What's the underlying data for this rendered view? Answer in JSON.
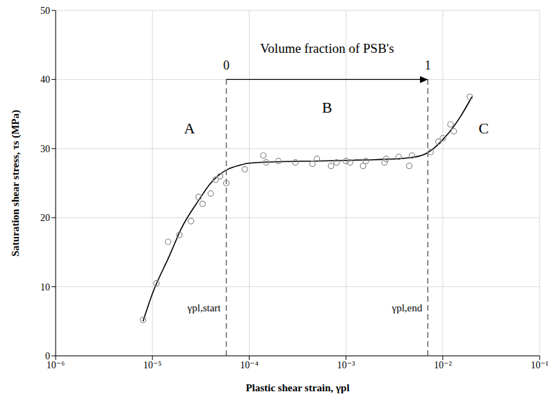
{
  "chart_data": {
    "type": "scatter",
    "x_label": "Plastic shear strain, γpl",
    "y_label": "Saturation shear stress, τs (MPa)",
    "log": "x",
    "grid": true,
    "xlim": [
      1e-06,
      0.1
    ],
    "xticks": [
      {
        "value": 1e-06,
        "label": "10⁻⁶"
      },
      {
        "value": 1e-05,
        "label": "10⁻⁵"
      },
      {
        "value": 0.0001,
        "label": "10⁻⁴"
      },
      {
        "value": 0.001,
        "label": "10⁻³"
      },
      {
        "value": 0.01,
        "label": "10⁻²"
      },
      {
        "value": 0.1,
        "label": "10⁻¹"
      }
    ],
    "ylim": [
      0,
      50
    ],
    "yticks": [
      0,
      10,
      20,
      30,
      40,
      50
    ],
    "series": [
      {
        "type": "scatter",
        "marker": "circle",
        "color": "#8a8a8a",
        "x": [
          8e-06,
          1.1e-05,
          1.45e-05,
          1.9e-05,
          2.5e-05,
          3e-05,
          3.3e-05,
          4e-05,
          4.5e-05,
          5e-05,
          5.8e-05,
          9e-05,
          0.00014,
          0.00015,
          0.0002,
          0.0003,
          0.00045,
          0.0005,
          0.0007,
          0.0008,
          0.001,
          0.0011,
          0.0015,
          0.0016,
          0.0025,
          0.0026,
          0.0035,
          0.0045,
          0.0048,
          0.0075,
          0.009,
          0.01,
          0.012,
          0.013,
          0.019
        ],
        "values": [
          5.2,
          10.5,
          16.5,
          17.5,
          19.5,
          23,
          22,
          23.5,
          25.5,
          26,
          25,
          27,
          29,
          28,
          28.2,
          28,
          27.8,
          28.5,
          27.5,
          28,
          28.2,
          28,
          27.5,
          28.2,
          28,
          28.5,
          28.8,
          27.5,
          29,
          29.5,
          31,
          31.5,
          33.5,
          32.5,
          37.5
        ]
      },
      {
        "type": "line",
        "line_style": "solid",
        "color": "#000000",
        "x": [
          8e-06,
          1e-05,
          1.5e-05,
          2e-05,
          3e-05,
          4e-05,
          5e-05,
          6e-05,
          8e-05,
          0.0001,
          0.0002,
          0.0005,
          0.001,
          0.002,
          0.004,
          0.006,
          0.008,
          0.01,
          0.015,
          0.02
        ],
        "values": [
          5,
          9,
          14.5,
          18.5,
          22.5,
          25,
          26.3,
          27,
          27.6,
          27.9,
          28.1,
          28.2,
          28.3,
          28.4,
          28.6,
          29,
          30,
          31.3,
          34.5,
          37.5
        ]
      }
    ],
    "vlines": [
      {
        "x": 5.8e-05,
        "label": "γpl,start"
      },
      {
        "x": 0.007,
        "label": "γpl,end"
      }
    ],
    "volume_fraction": {
      "label": "Volume fraction of PSB's",
      "start": 0,
      "end": 1
    },
    "regions": [
      "A",
      "B",
      "C"
    ]
  }
}
